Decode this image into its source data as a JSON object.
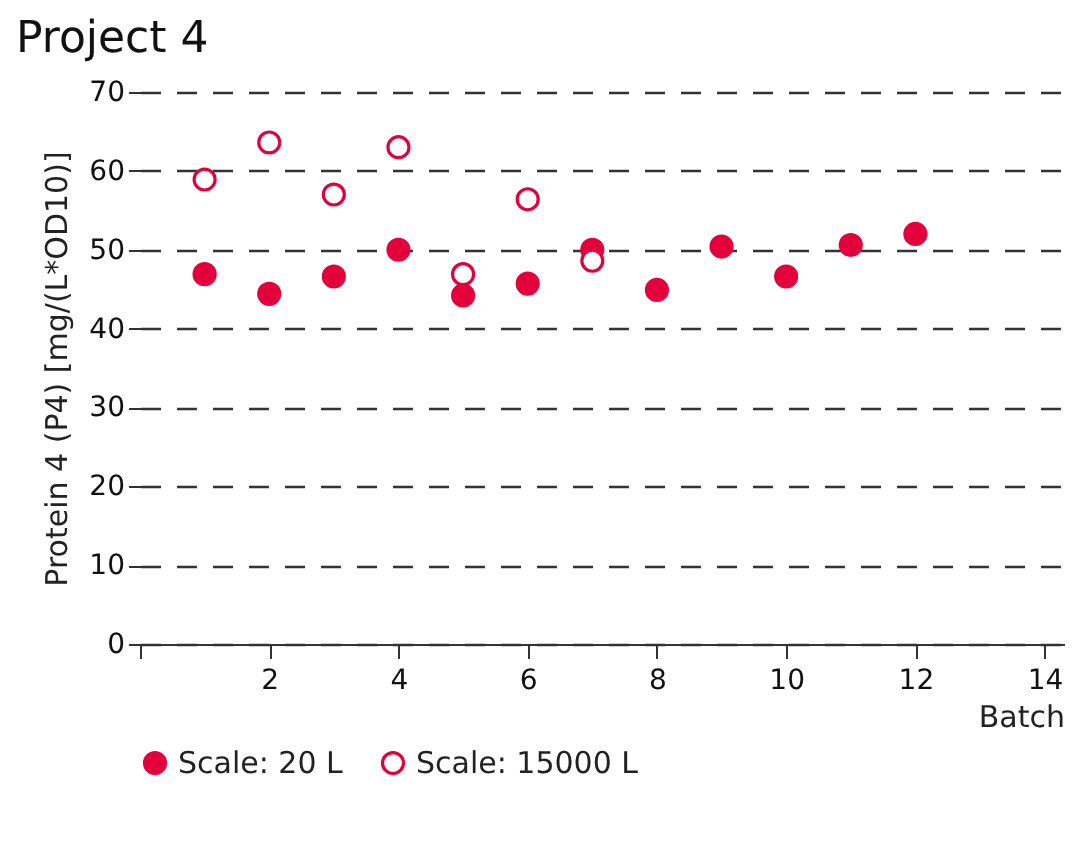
{
  "chart_data": {
    "type": "scatter",
    "title": "Project 4",
    "xlabel": "Batch",
    "ylabel": "Protein 4 (P4) [mg/(L*OD10)]",
    "series": [
      {
        "name": "Scale: 20 L",
        "color": "#e4003b",
        "x": [
          1,
          2,
          3,
          4,
          5,
          6,
          7,
          8,
          9,
          10,
          11,
          12
        ],
        "values": [
          46.9,
          44.4,
          46.6,
          50,
          44.2,
          45.7,
          50,
          44.9,
          50.4,
          46.6,
          50.6,
          52.0
        ]
      },
      {
        "name": "Scale: 15000 L",
        "color": "#e4003b",
        "x": [
          1,
          2,
          3,
          4,
          5,
          6,
          7
        ],
        "values": [
          58.9,
          63.6,
          57.0,
          63.0,
          46.9,
          56.4,
          48.6
        ]
      }
    ],
    "xlim": [
      0,
      14.3
    ],
    "xticks": [
      {
        "value": 0,
        "label": null
      },
      2,
      4,
      6,
      8,
      10,
      12,
      14
    ],
    "ylim": [
      0,
      70
    ],
    "yticks": [
      0,
      10,
      20,
      30,
      40,
      50,
      60,
      70
    ],
    "grid": "y",
    "legend": "bottom",
    "marker": "circle"
  }
}
